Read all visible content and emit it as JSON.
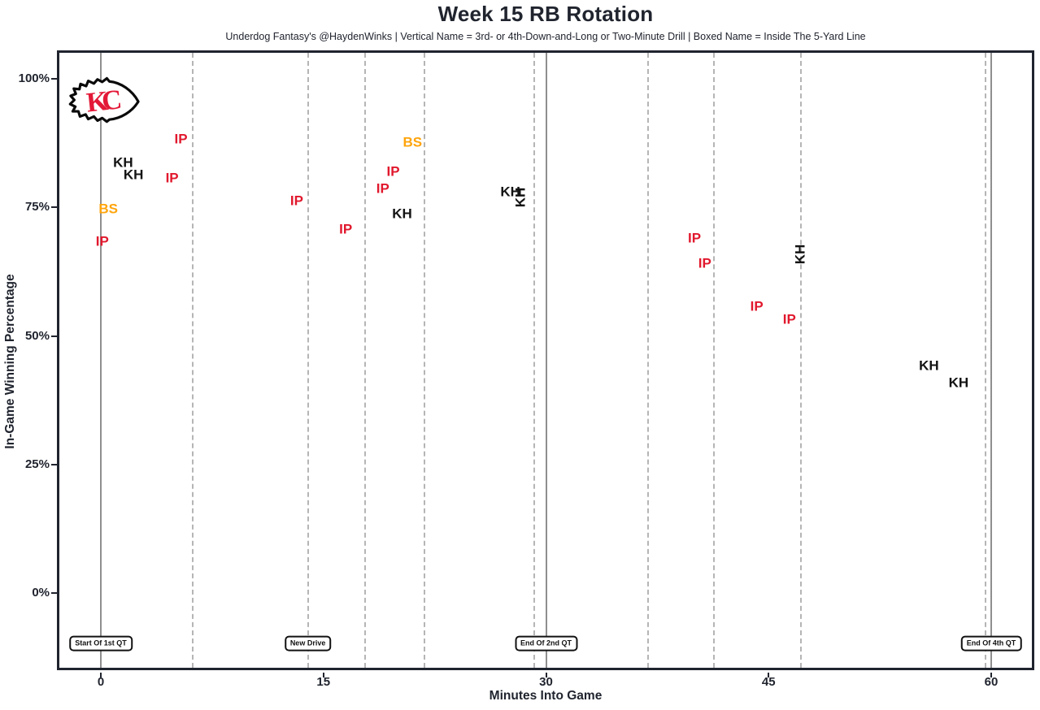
{
  "chart_data": {
    "type": "scatter",
    "title": "Week 15 RB Rotation",
    "subtitle": "Underdog Fantasy's @HaydenWinks | Vertical Name = 3rd- or 4th-Down-and-Long or Two-Minute Drill | Boxed Name = Inside The 5-Yard Line",
    "xlabel": "Minutes Into Game",
    "ylabel": "In-Game Winning Percentage",
    "x_ticks": {
      "values": [
        0,
        15,
        30,
        45,
        60
      ],
      "labels": [
        "0",
        "15",
        "30",
        "45",
        "60"
      ]
    },
    "y_ticks": {
      "values": [
        0,
        25,
        50,
        75,
        100
      ],
      "labels": [
        "0%",
        "25%",
        "50%",
        "75%",
        "100%"
      ]
    },
    "xlim": [
      -3,
      62.9
    ],
    "ylim": [
      -15,
      105.5
    ],
    "grid": "vertical event lines only, no horizontal gridlines",
    "legend_position": "none",
    "marker_style": "player-initial text labels",
    "team_logo": "kansas-city-chiefs-arrowhead",
    "colors": {
      "IP": "#E1182D",
      "KH": "#131313",
      "BS": "#FFA40B",
      "quarter_line": "#8F8F8F",
      "drive_line": "#B5B5B5",
      "axis_text": "#20242E",
      "logo_red": "#E31837"
    },
    "quarter_lines": [
      {
        "x": 0,
        "label": "Start Of 1st QT"
      },
      {
        "x": 30,
        "label": "End Of 2nd QT"
      },
      {
        "x": 60,
        "label": "End Of 4th QT"
      }
    ],
    "new_drive_lines_x": [
      6.2,
      13.95,
      17.8,
      21.8,
      29.2,
      36.9,
      41.3,
      47.2,
      59.6
    ],
    "event_boxes": [
      {
        "x": 0,
        "label": "Start Of 1st QT"
      },
      {
        "x": 13.95,
        "label": "New Drive"
      },
      {
        "x": 30,
        "label": "End Of 2nd QT"
      },
      {
        "x": 60,
        "label": "End Of 4th QT"
      }
    ],
    "points": [
      {
        "player": "IP",
        "x": 5.4,
        "y": 88.3,
        "vertical": false
      },
      {
        "player": "KH",
        "x": 1.5,
        "y": 83.7,
        "vertical": false
      },
      {
        "player": "KH",
        "x": 2.2,
        "y": 81.4,
        "vertical": false
      },
      {
        "player": "IP",
        "x": 4.8,
        "y": 80.7,
        "vertical": false
      },
      {
        "player": "BS",
        "x": 0.5,
        "y": 74.7,
        "vertical": false
      },
      {
        "player": "IP",
        "x": 0.1,
        "y": 68.4,
        "vertical": false
      },
      {
        "player": "IP",
        "x": 13.2,
        "y": 76.3,
        "vertical": false
      },
      {
        "player": "IP",
        "x": 16.5,
        "y": 70.8,
        "vertical": false
      },
      {
        "player": "IP",
        "x": 19.7,
        "y": 82.0,
        "vertical": false
      },
      {
        "player": "IP",
        "x": 19.0,
        "y": 78.7,
        "vertical": false
      },
      {
        "player": "KH",
        "x": 20.3,
        "y": 73.8,
        "vertical": false
      },
      {
        "player": "BS",
        "x": 21.0,
        "y": 87.7,
        "vertical": false
      },
      {
        "player": "KH",
        "x": 27.6,
        "y": 78.0,
        "vertical": false
      },
      {
        "player": "KH",
        "x": 28.3,
        "y": 76.9,
        "vertical": true
      },
      {
        "player": "IP",
        "x": 40.0,
        "y": 69.0,
        "vertical": false
      },
      {
        "player": "IP",
        "x": 40.7,
        "y": 64.1,
        "vertical": false
      },
      {
        "player": "KH",
        "x": 47.1,
        "y": 65.9,
        "vertical": true
      },
      {
        "player": "IP",
        "x": 44.2,
        "y": 55.8,
        "vertical": false
      },
      {
        "player": "IP",
        "x": 46.4,
        "y": 53.2,
        "vertical": false
      },
      {
        "player": "KH",
        "x": 55.8,
        "y": 44.2,
        "vertical": false
      },
      {
        "player": "KH",
        "x": 57.8,
        "y": 40.9,
        "vertical": false
      }
    ]
  }
}
